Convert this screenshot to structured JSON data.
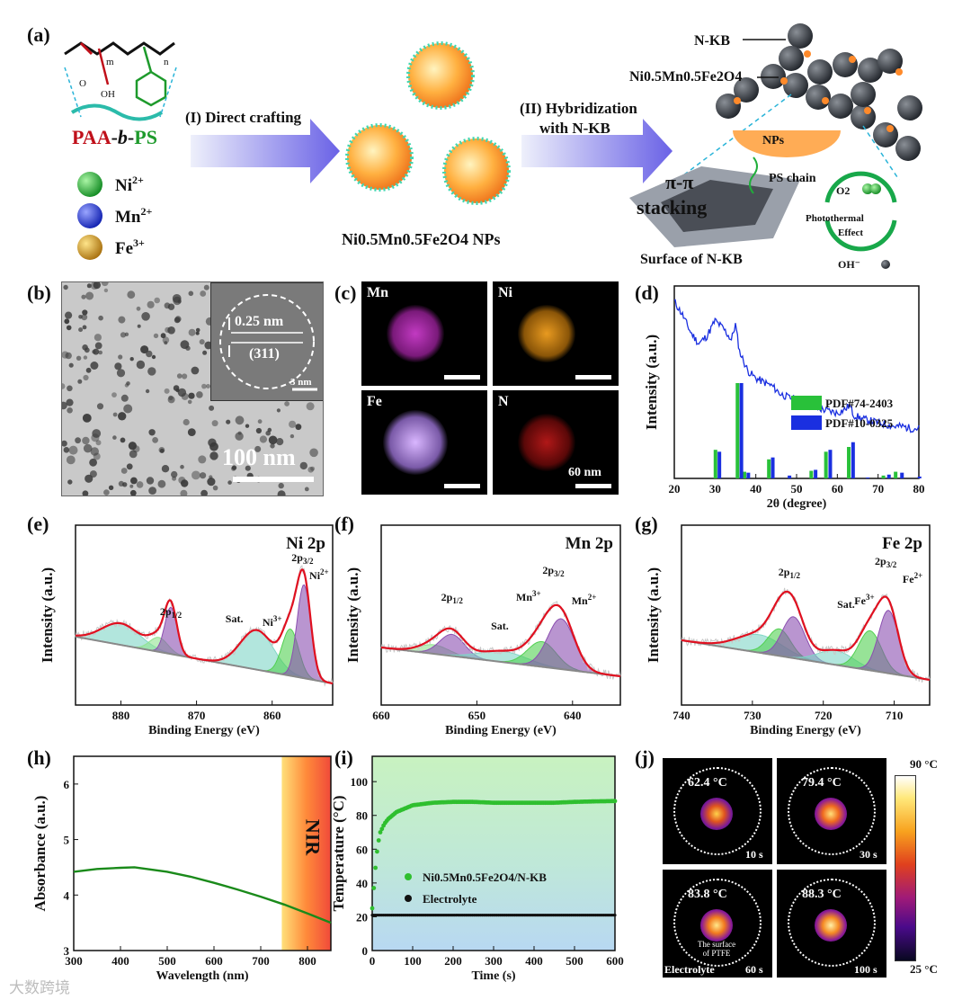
{
  "panel_labels": {
    "a": "(a)",
    "b": "(b)",
    "c": "(c)",
    "d": "(d)",
    "e": "(e)",
    "f": "(f)",
    "g": "(g)",
    "h": "(h)",
    "i": "(i)",
    "j": "(j)"
  },
  "schematic": {
    "polymer": "PAA-b-PS",
    "polymer_parts": {
      "paa": "PAA",
      "b": "b",
      "ps": "PS",
      "m": "m",
      "n": "n",
      "oh": "OH",
      "o": "O"
    },
    "ions": [
      {
        "label": "Ni",
        "charge": "2+",
        "color": "#1ea035"
      },
      {
        "label": "Mn",
        "charge": "2+",
        "color": "#1e3ccf"
      },
      {
        "label": "Fe",
        "charge": "3+",
        "color": "#c8961e"
      }
    ],
    "step1": "(I) Direct crafting",
    "step2_line1": "(II) Hybridization",
    "step2_line2": "with N-KB",
    "np_label": "Ni0.5Mn0.5Fe2O4 NPs",
    "nkb_label": "N-KB",
    "ferrite_label": "Ni0.5Mn0.5Fe2O4",
    "nps": "NPs",
    "ps_chain": "PS chain",
    "pi_stack": "π-π",
    "stacking": "stacking",
    "surface": "Surface of N-KB",
    "o2": "O2",
    "oh": "OH⁻",
    "photothermal_1": "Photothermal",
    "photothermal_2": "Effect"
  },
  "tem": {
    "scale": "100 nm",
    "d_spacing": "0.25 nm",
    "plane": "(311)",
    "inset_scale": "3 nm"
  },
  "eds": {
    "maps": [
      "Mn",
      "Ni",
      "Fe",
      "N"
    ],
    "scale": "60 nm"
  },
  "chart_data": [
    {
      "id": "d",
      "type": "line",
      "xlabel": "2θ (degree)",
      "ylabel": "Intensity (a.u.)",
      "xlim": [
        20,
        80
      ],
      "xticks": [
        20,
        30,
        40,
        50,
        60,
        70,
        80
      ],
      "legend": [
        "PDF#74-2403",
        "PDF#10-0325"
      ],
      "legend_colors": [
        "#29c13a",
        "#1a2fe0"
      ],
      "pattern": {
        "x": [
          20,
          22,
          24,
          26,
          28,
          30,
          32,
          34,
          35,
          36,
          38,
          40,
          42,
          44,
          46,
          48,
          50,
          52,
          54,
          56,
          58,
          60,
          62,
          63,
          64,
          66,
          68,
          70,
          72,
          74,
          76,
          78,
          80
        ],
        "y": [
          0.92,
          0.85,
          0.76,
          0.7,
          0.74,
          0.82,
          0.78,
          0.72,
          0.8,
          0.66,
          0.56,
          0.52,
          0.5,
          0.48,
          0.44,
          0.42,
          0.41,
          0.39,
          0.37,
          0.36,
          0.35,
          0.34,
          0.36,
          0.38,
          0.33,
          0.31,
          0.3,
          0.29,
          0.28,
          0.27,
          0.27,
          0.26,
          0.26
        ]
      },
      "ref_bars": {
        "PDF#74-2403": {
          "x": [
            30.1,
            35.5,
            37.2,
            43.2,
            53.6,
            57.2,
            62.8,
            71.3,
            74.3
          ],
          "h": [
            0.3,
            1.0,
            0.07,
            0.2,
            0.08,
            0.28,
            0.33,
            0.03,
            0.07
          ]
        },
        "PDF#10-0325": {
          "x": [
            30.4,
            35.8,
            37.5,
            43.5,
            47.6,
            54.0,
            57.6,
            63.2,
            66.8,
            72.0,
            75.2,
            79.5
          ],
          "h": [
            0.28,
            1.0,
            0.06,
            0.22,
            0.03,
            0.09,
            0.3,
            0.38,
            0.01,
            0.04,
            0.06,
            0.02
          ]
        }
      }
    },
    {
      "id": "e",
      "type": "line",
      "title": "Ni 2p",
      "xlabel": "Binding Energy (eV)",
      "ylabel": "Intensity (a.u.)",
      "xlim": [
        886,
        852
      ],
      "xticks": [
        880,
        870,
        860
      ],
      "annotations": [
        "2p1/2",
        "2p3/2",
        "Sat.",
        "Ni3+",
        "Ni2+"
      ]
    },
    {
      "id": "f",
      "type": "line",
      "title": "Mn 2p",
      "xlabel": "Binding Energy (eV)",
      "ylabel": "Intensity (a.u.)",
      "xlim": [
        660,
        635
      ],
      "xticks": [
        660,
        650,
        640
      ],
      "annotations": [
        "2p1/2",
        "2p3/2",
        "Sat.",
        "Mn3+",
        "Mn2+"
      ]
    },
    {
      "id": "g",
      "type": "line",
      "title": "Fe 2p",
      "xlabel": "Binding Energy (eV)",
      "ylabel": "Intensity (a.u.)",
      "xlim": [
        740,
        705
      ],
      "xticks": [
        740,
        730,
        720,
        710
      ],
      "annotations": [
        "2p1/2",
        "2p3/2",
        "Sat.",
        "Fe3+",
        "Fe2+"
      ]
    },
    {
      "id": "h",
      "type": "line",
      "xlabel": "Wavelength (nm)",
      "ylabel": "Absorbance (a.u.)",
      "xlim": [
        300,
        850
      ],
      "ylim": [
        3,
        6.5
      ],
      "xticks": [
        300,
        400,
        500,
        600,
        700,
        800
      ],
      "yticks": [
        3,
        4,
        5,
        6
      ],
      "band_label": "NIR",
      "band_start": 745,
      "series": [
        {
          "x": [
            300,
            350,
            400,
            430,
            500,
            550,
            600,
            650,
            700,
            750,
            800,
            850
          ],
          "y": [
            4.42,
            4.47,
            4.49,
            4.5,
            4.42,
            4.33,
            4.22,
            4.1,
            3.97,
            3.83,
            3.67,
            3.5
          ]
        }
      ]
    },
    {
      "id": "i",
      "type": "scatter",
      "xlabel": "Time (s)",
      "ylabel": "Temperature (°C)",
      "xlim": [
        0,
        600
      ],
      "ylim": [
        0,
        115
      ],
      "xticks": [
        0,
        100,
        200,
        300,
        400,
        500,
        600
      ],
      "yticks": [
        0,
        20,
        40,
        60,
        80,
        100
      ],
      "legend": [
        "Ni0.5Mn0.5Fe2O4/N-KB",
        "Electrolyte"
      ],
      "series": [
        {
          "name": "Ni0.5Mn0.5Fe2O4/N-KB",
          "color": "#2fbf2f",
          "x": [
            0,
            5,
            10,
            15,
            20,
            30,
            40,
            60,
            80,
            100,
            150,
            200,
            250,
            300,
            350,
            400,
            450,
            500,
            550,
            600
          ],
          "y": [
            25,
            40,
            55,
            64,
            70,
            75,
            78,
            82,
            84,
            86,
            87.5,
            88,
            88,
            87.5,
            87.5,
            87.5,
            87.5,
            88,
            88.3,
            88.5
          ]
        },
        {
          "name": "Electrolyte",
          "color": "#111111",
          "x": [
            0,
            100,
            200,
            300,
            400,
            500,
            600
          ],
          "y": [
            21,
            21,
            21,
            21,
            21,
            21,
            21
          ]
        }
      ]
    }
  ],
  "thermal": {
    "cells": [
      {
        "temp": "62.4 °C",
        "time": "10 s"
      },
      {
        "temp": "79.4 °C",
        "time": "30 s"
      },
      {
        "temp": "83.8 °C",
        "time": "60 s"
      },
      {
        "temp": "88.3 °C",
        "time": "100 s"
      }
    ],
    "surface_note_1": "The surface",
    "surface_note_2": "of PTFE",
    "electrolyte": "Electrolyte",
    "scale_max": "90 °C",
    "scale_min": "25 °C"
  },
  "watermark": "大数跨境"
}
